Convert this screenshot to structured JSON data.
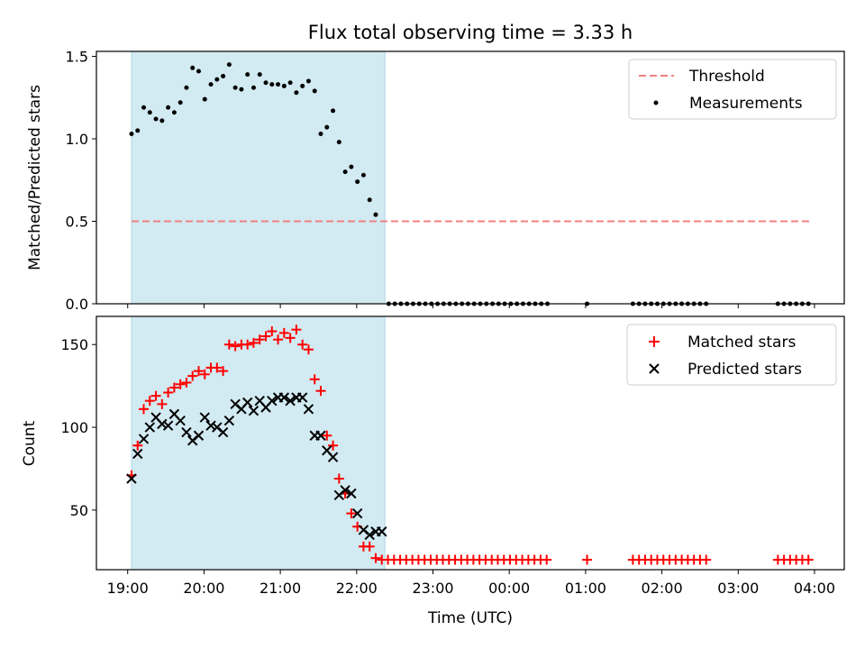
{
  "title": "Flux total observing time = 3.33 h",
  "x_axis": {
    "label": "Time (UTC)",
    "ticks": [
      {
        "value": 19.0,
        "label": "19:00"
      },
      {
        "value": 20.0,
        "label": "20:00"
      },
      {
        "value": 21.0,
        "label": "21:00"
      },
      {
        "value": 22.0,
        "label": "22:00"
      },
      {
        "value": 23.0,
        "label": "23:00"
      },
      {
        "value": 24.0,
        "label": "00:00"
      },
      {
        "value": 25.0,
        "label": "01:00"
      },
      {
        "value": 26.0,
        "label": "02:00"
      },
      {
        "value": 27.0,
        "label": "03:00"
      },
      {
        "value": 28.0,
        "label": "04:00"
      }
    ],
    "range": [
      18.59,
      28.39
    ]
  },
  "colors": {
    "shade": "#add8e6",
    "threshold": "#f08080",
    "matched": "#ff0000",
    "predicted": "#000000",
    "measurements": "#000000"
  },
  "chart_data": [
    {
      "type": "scatter",
      "ylabel": "Matched/Predicted stars",
      "ylim": [
        0,
        1.53
      ],
      "yticks": [
        {
          "value": 0.0,
          "label": "0.0"
        },
        {
          "value": 0.5,
          "label": "0.5"
        },
        {
          "value": 1.0,
          "label": "1.0"
        },
        {
          "value": 1.5,
          "label": "1.5"
        }
      ],
      "shaded_region": [
        19.05,
        22.37
      ],
      "threshold": {
        "name": "Threshold",
        "y": 0.5,
        "x_range": [
          19.05,
          27.97
        ]
      },
      "legend": {
        "position": "top-right",
        "entries": [
          "Threshold",
          "Measurements"
        ]
      },
      "series": [
        {
          "name": "Measurements",
          "points": [
            [
              19.05,
              1.03
            ],
            [
              19.13,
              1.05
            ],
            [
              19.21,
              1.19
            ],
            [
              19.29,
              1.16
            ],
            [
              19.37,
              1.12
            ],
            [
              19.45,
              1.11
            ],
            [
              19.53,
              1.19
            ],
            [
              19.61,
              1.16
            ],
            [
              19.69,
              1.22
            ],
            [
              19.77,
              1.31
            ],
            [
              19.85,
              1.43
            ],
            [
              19.93,
              1.41
            ],
            [
              20.01,
              1.24
            ],
            [
              20.09,
              1.33
            ],
            [
              20.17,
              1.36
            ],
            [
              20.25,
              1.38
            ],
            [
              20.33,
              1.45
            ],
            [
              20.41,
              1.31
            ],
            [
              20.49,
              1.3
            ],
            [
              20.57,
              1.39
            ],
            [
              20.65,
              1.31
            ],
            [
              20.73,
              1.39
            ],
            [
              20.81,
              1.34
            ],
            [
              20.89,
              1.33
            ],
            [
              20.97,
              1.33
            ],
            [
              21.05,
              1.32
            ],
            [
              21.13,
              1.34
            ],
            [
              21.21,
              1.28
            ],
            [
              21.29,
              1.32
            ],
            [
              21.37,
              1.35
            ],
            [
              21.45,
              1.29
            ],
            [
              21.53,
              1.03
            ],
            [
              21.61,
              1.07
            ],
            [
              21.69,
              1.17
            ],
            [
              21.77,
              0.98
            ],
            [
              21.85,
              0.8
            ],
            [
              21.93,
              0.83
            ],
            [
              22.01,
              0.74
            ],
            [
              22.09,
              0.78
            ],
            [
              22.17,
              0.63
            ],
            [
              22.25,
              0.54
            ],
            [
              22.42,
              0.0
            ],
            [
              22.5,
              0.0
            ],
            [
              22.58,
              0.0
            ],
            [
              22.66,
              0.0
            ],
            [
              22.74,
              0.0
            ],
            [
              22.82,
              0.0
            ],
            [
              22.9,
              0.0
            ],
            [
              22.98,
              0.0
            ],
            [
              23.06,
              0.0
            ],
            [
              23.14,
              0.0
            ],
            [
              23.22,
              0.0
            ],
            [
              23.3,
              0.0
            ],
            [
              23.38,
              0.0
            ],
            [
              23.46,
              0.0
            ],
            [
              23.54,
              0.0
            ],
            [
              23.62,
              0.0
            ],
            [
              23.7,
              0.0
            ],
            [
              23.78,
              0.0
            ],
            [
              23.86,
              0.0
            ],
            [
              23.94,
              0.0
            ],
            [
              24.02,
              0.0
            ],
            [
              24.1,
              0.0
            ],
            [
              24.18,
              0.0
            ],
            [
              24.26,
              0.0
            ],
            [
              24.34,
              0.0
            ],
            [
              24.42,
              0.0
            ],
            [
              24.5,
              0.0
            ],
            [
              25.02,
              0.0
            ],
            [
              25.62,
              0.0
            ],
            [
              25.7,
              0.0
            ],
            [
              25.78,
              0.0
            ],
            [
              25.86,
              0.0
            ],
            [
              25.94,
              0.0
            ],
            [
              26.02,
              0.0
            ],
            [
              26.1,
              0.0
            ],
            [
              26.18,
              0.0
            ],
            [
              26.26,
              0.0
            ],
            [
              26.34,
              0.0
            ],
            [
              26.42,
              0.0
            ],
            [
              26.5,
              0.0
            ],
            [
              26.58,
              0.0
            ],
            [
              27.52,
              0.0
            ],
            [
              27.6,
              0.0
            ],
            [
              27.68,
              0.0
            ],
            [
              27.76,
              0.0
            ],
            [
              27.84,
              0.0
            ],
            [
              27.92,
              0.0
            ]
          ]
        }
      ]
    },
    {
      "type": "scatter",
      "ylabel": "Count",
      "ylim": [
        14,
        167
      ],
      "yticks": [
        {
          "value": 50,
          "label": "50"
        },
        {
          "value": 100,
          "label": "100"
        },
        {
          "value": 150,
          "label": "150"
        }
      ],
      "shaded_region": [
        19.05,
        22.37
      ],
      "legend": {
        "position": "top-right",
        "entries": [
          "Matched stars",
          "Predicted stars"
        ]
      },
      "series": [
        {
          "name": "Matched stars",
          "marker": "plus",
          "points": [
            [
              19.05,
              71
            ],
            [
              19.13,
              89
            ],
            [
              19.21,
              111
            ],
            [
              19.29,
              116
            ],
            [
              19.37,
              119
            ],
            [
              19.45,
              114
            ],
            [
              19.53,
              121
            ],
            [
              19.61,
              124
            ],
            [
              19.69,
              126
            ],
            [
              19.77,
              127
            ],
            [
              19.85,
              131
            ],
            [
              19.93,
              134
            ],
            [
              20.01,
              132
            ],
            [
              20.09,
              136
            ],
            [
              20.17,
              136
            ],
            [
              20.25,
              134
            ],
            [
              20.33,
              150
            ],
            [
              20.41,
              149
            ],
            [
              20.49,
              150
            ],
            [
              20.57,
              150
            ],
            [
              20.65,
              151
            ],
            [
              20.73,
              153
            ],
            [
              20.81,
              155
            ],
            [
              20.89,
              158
            ],
            [
              20.97,
              153
            ],
            [
              21.05,
              157
            ],
            [
              21.13,
              154
            ],
            [
              21.21,
              159
            ],
            [
              21.29,
              150
            ],
            [
              21.37,
              147
            ],
            [
              21.45,
              129
            ],
            [
              21.53,
              122
            ],
            [
              21.61,
              95
            ],
            [
              21.69,
              89
            ],
            [
              21.77,
              69
            ],
            [
              21.85,
              60
            ],
            [
              21.93,
              48
            ],
            [
              22.01,
              40
            ],
            [
              22.09,
              28
            ],
            [
              22.17,
              28
            ],
            [
              22.25,
              21
            ],
            [
              22.33,
              20
            ],
            [
              22.41,
              20
            ],
            [
              22.49,
              20
            ],
            [
              22.57,
              20
            ],
            [
              22.65,
              20
            ],
            [
              22.73,
              20
            ],
            [
              22.81,
              20
            ],
            [
              22.89,
              20
            ],
            [
              22.97,
              20
            ],
            [
              23.05,
              20
            ],
            [
              23.13,
              20
            ],
            [
              23.21,
              20
            ],
            [
              23.29,
              20
            ],
            [
              23.37,
              20
            ],
            [
              23.45,
              20
            ],
            [
              23.53,
              20
            ],
            [
              23.61,
              20
            ],
            [
              23.69,
              20
            ],
            [
              23.77,
              20
            ],
            [
              23.85,
              20
            ],
            [
              23.93,
              20
            ],
            [
              24.01,
              20
            ],
            [
              24.09,
              20
            ],
            [
              24.17,
              20
            ],
            [
              24.25,
              20
            ],
            [
              24.33,
              20
            ],
            [
              24.41,
              20
            ],
            [
              24.49,
              20
            ],
            [
              25.02,
              20
            ],
            [
              25.62,
              20
            ],
            [
              25.7,
              20
            ],
            [
              25.78,
              20
            ],
            [
              25.86,
              20
            ],
            [
              25.94,
              20
            ],
            [
              26.02,
              20
            ],
            [
              26.1,
              20
            ],
            [
              26.18,
              20
            ],
            [
              26.26,
              20
            ],
            [
              26.34,
              20
            ],
            [
              26.42,
              20
            ],
            [
              26.5,
              20
            ],
            [
              26.58,
              20
            ],
            [
              27.52,
              20
            ],
            [
              27.6,
              20
            ],
            [
              27.68,
              20
            ],
            [
              27.76,
              20
            ],
            [
              27.84,
              20
            ],
            [
              27.92,
              20
            ]
          ]
        },
        {
          "name": "Predicted stars",
          "marker": "x",
          "points": [
            [
              19.05,
              69
            ],
            [
              19.13,
              84
            ],
            [
              19.21,
              93
            ],
            [
              19.29,
              100
            ],
            [
              19.37,
              106
            ],
            [
              19.45,
              102
            ],
            [
              19.53,
              101
            ],
            [
              19.61,
              108
            ],
            [
              19.69,
              104
            ],
            [
              19.77,
              97
            ],
            [
              19.85,
              92
            ],
            [
              19.93,
              95
            ],
            [
              20.01,
              106
            ],
            [
              20.09,
              101
            ],
            [
              20.17,
              100
            ],
            [
              20.25,
              97
            ],
            [
              20.33,
              104
            ],
            [
              20.41,
              114
            ],
            [
              20.49,
              111
            ],
            [
              20.57,
              115
            ],
            [
              20.65,
              110
            ],
            [
              20.73,
              116
            ],
            [
              20.81,
              112
            ],
            [
              20.89,
              116
            ],
            [
              20.97,
              118
            ],
            [
              21.05,
              118
            ],
            [
              21.13,
              116
            ],
            [
              21.21,
              118
            ],
            [
              21.29,
              118
            ],
            [
              21.37,
              111
            ],
            [
              21.45,
              95
            ],
            [
              21.53,
              95
            ],
            [
              21.61,
              86
            ],
            [
              21.69,
              82
            ],
            [
              21.77,
              59
            ],
            [
              21.85,
              62
            ],
            [
              21.93,
              60
            ],
            [
              22.01,
              48
            ],
            [
              22.09,
              38
            ],
            [
              22.17,
              35
            ],
            [
              22.25,
              37
            ],
            [
              22.33,
              37
            ]
          ]
        }
      ]
    }
  ]
}
